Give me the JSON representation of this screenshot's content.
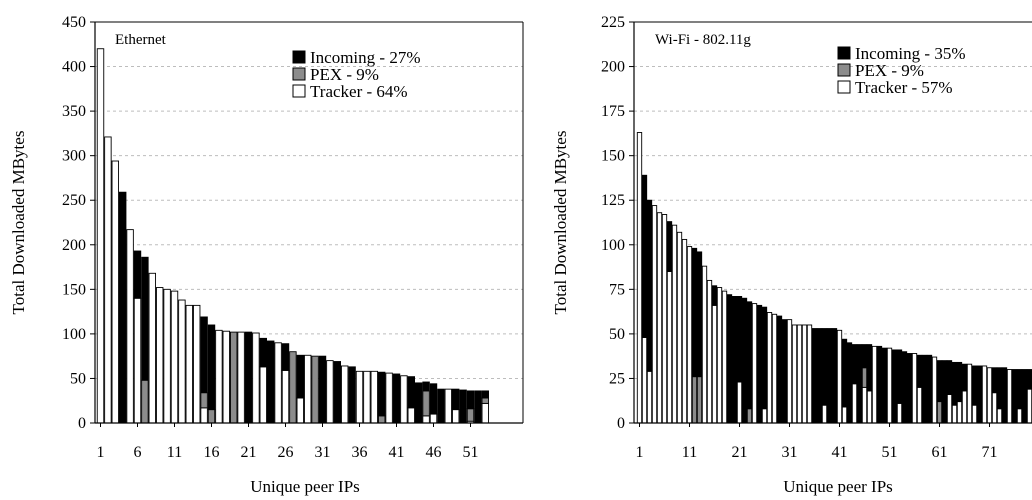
{
  "chart_data": [
    {
      "type": "bar",
      "stacked": true,
      "title": "Ethernet",
      "xlabel": "Unique peer IPs",
      "ylabel": "Total Downloaded MBytes",
      "ylim": [
        0,
        450
      ],
      "yticks": [
        0,
        50,
        100,
        150,
        200,
        250,
        300,
        350,
        400,
        450
      ],
      "xticks": [
        1,
        6,
        11,
        16,
        21,
        26,
        31,
        36,
        41,
        46,
        51
      ],
      "grid": true,
      "legend_position": "top-right",
      "colors": {
        "Incoming": "#000000",
        "PEX": "#8c8c8c",
        "Tracker": "#ffffff"
      },
      "legend": [
        "Incoming - 27%",
        "PEX - 9%",
        "Tracker - 64%"
      ],
      "bars": [
        {
          "x": 1,
          "incoming": 0,
          "pex": 0,
          "tracker": 420
        },
        {
          "x": 2,
          "incoming": 0,
          "pex": 0,
          "tracker": 321
        },
        {
          "x": 3,
          "incoming": 0,
          "pex": 0,
          "tracker": 294
        },
        {
          "x": 4,
          "incoming": 259,
          "pex": 0,
          "tracker": 0
        },
        {
          "x": 5,
          "incoming": 0,
          "pex": 0,
          "tracker": 217
        },
        {
          "x": 6,
          "incoming": 53,
          "pex": 0,
          "tracker": 140
        },
        {
          "x": 7,
          "incoming": 138,
          "pex": 48,
          "tracker": 0
        },
        {
          "x": 8,
          "incoming": 0,
          "pex": 0,
          "tracker": 168
        },
        {
          "x": 9,
          "incoming": 0,
          "pex": 0,
          "tracker": 152
        },
        {
          "x": 10,
          "incoming": 0,
          "pex": 0,
          "tracker": 150
        },
        {
          "x": 11,
          "incoming": 0,
          "pex": 0,
          "tracker": 148
        },
        {
          "x": 12,
          "incoming": 0,
          "pex": 0,
          "tracker": 138
        },
        {
          "x": 13,
          "incoming": 0,
          "pex": 0,
          "tracker": 132
        },
        {
          "x": 14,
          "incoming": 0,
          "pex": 0,
          "tracker": 132
        },
        {
          "x": 15,
          "incoming": 85,
          "pex": 17,
          "tracker": 17
        },
        {
          "x": 16,
          "incoming": 95,
          "pex": 15,
          "tracker": 0
        },
        {
          "x": 17,
          "incoming": 0,
          "pex": 0,
          "tracker": 104
        },
        {
          "x": 18,
          "incoming": 0,
          "pex": 0,
          "tracker": 103
        },
        {
          "x": 19,
          "incoming": 0,
          "pex": 102,
          "tracker": 0
        },
        {
          "x": 20,
          "incoming": 0,
          "pex": 0,
          "tracker": 102
        },
        {
          "x": 21,
          "incoming": 102,
          "pex": 0,
          "tracker": 0
        },
        {
          "x": 22,
          "incoming": 0,
          "pex": 0,
          "tracker": 101
        },
        {
          "x": 23,
          "incoming": 32,
          "pex": 0,
          "tracker": 63
        },
        {
          "x": 24,
          "incoming": 92,
          "pex": 0,
          "tracker": 0
        },
        {
          "x": 25,
          "incoming": 0,
          "pex": 0,
          "tracker": 90
        },
        {
          "x": 26,
          "incoming": 30,
          "pex": 0,
          "tracker": 59
        },
        {
          "x": 27,
          "incoming": 0,
          "pex": 80,
          "tracker": 0
        },
        {
          "x": 28,
          "incoming": 48,
          "pex": 0,
          "tracker": 28
        },
        {
          "x": 29,
          "incoming": 0,
          "pex": 0,
          "tracker": 76
        },
        {
          "x": 30,
          "incoming": 0,
          "pex": 75,
          "tracker": 0
        },
        {
          "x": 31,
          "incoming": 75,
          "pex": 0,
          "tracker": 0
        },
        {
          "x": 32,
          "incoming": 0,
          "pex": 0,
          "tracker": 70
        },
        {
          "x": 33,
          "incoming": 69,
          "pex": 0,
          "tracker": 0
        },
        {
          "x": 34,
          "incoming": 0,
          "pex": 0,
          "tracker": 64
        },
        {
          "x": 35,
          "incoming": 63,
          "pex": 0,
          "tracker": 0
        },
        {
          "x": 36,
          "incoming": 0,
          "pex": 0,
          "tracker": 58
        },
        {
          "x": 37,
          "incoming": 0,
          "pex": 0,
          "tracker": 58
        },
        {
          "x": 38,
          "incoming": 0,
          "pex": 0,
          "tracker": 58
        },
        {
          "x": 39,
          "incoming": 49,
          "pex": 8,
          "tracker": 0
        },
        {
          "x": 40,
          "incoming": 0,
          "pex": 0,
          "tracker": 56
        },
        {
          "x": 41,
          "incoming": 55,
          "pex": 0,
          "tracker": 0
        },
        {
          "x": 42,
          "incoming": 0,
          "pex": 0,
          "tracker": 53
        },
        {
          "x": 43,
          "incoming": 35,
          "pex": 0,
          "tracker": 17
        },
        {
          "x": 44,
          "incoming": 45,
          "pex": 0,
          "tracker": 0
        },
        {
          "x": 45,
          "incoming": 10,
          "pex": 28,
          "tracker": 8
        },
        {
          "x": 46,
          "incoming": 34,
          "pex": 0,
          "tracker": 10
        },
        {
          "x": 47,
          "incoming": 38,
          "pex": 0,
          "tracker": 0
        },
        {
          "x": 48,
          "incoming": 0,
          "pex": 0,
          "tracker": 38
        },
        {
          "x": 49,
          "incoming": 23,
          "pex": 0,
          "tracker": 15
        },
        {
          "x": 50,
          "incoming": 37,
          "pex": 0,
          "tracker": 0
        },
        {
          "x": 51,
          "incoming": 20,
          "pex": 14,
          "tracker": 2
        },
        {
          "x": 52,
          "incoming": 36,
          "pex": 0,
          "tracker": 0
        },
        {
          "x": 53,
          "incoming": 8,
          "pex": 6,
          "tracker": 22
        }
      ]
    },
    {
      "type": "bar",
      "stacked": true,
      "title": "Wi-Fi - 802.11g",
      "xlabel": "Unique peer IPs",
      "ylabel": "Total Downloaded MBytes",
      "ylim": [
        0,
        225
      ],
      "yticks": [
        0,
        25,
        50,
        75,
        100,
        125,
        150,
        175,
        200,
        225
      ],
      "xticks": [
        1,
        11,
        21,
        31,
        41,
        51,
        61,
        71
      ],
      "grid": true,
      "legend_position": "top-right",
      "colors": {
        "Incoming": "#000000",
        "PEX": "#8c8c8c",
        "Tracker": "#ffffff"
      },
      "legend": [
        "Incoming - 35%",
        "PEX - 9%",
        "Tracker - 57%"
      ],
      "bars": [
        {
          "x": 1,
          "incoming": 0,
          "pex": 0,
          "tracker": 163
        },
        {
          "x": 2,
          "incoming": 91,
          "pex": 0,
          "tracker": 48
        },
        {
          "x": 3,
          "incoming": 96,
          "pex": 0,
          "tracker": 29
        },
        {
          "x": 4,
          "incoming": 0,
          "pex": 0,
          "tracker": 122
        },
        {
          "x": 5,
          "incoming": 0,
          "pex": 0,
          "tracker": 118
        },
        {
          "x": 6,
          "incoming": 0,
          "pex": 0,
          "tracker": 117
        },
        {
          "x": 7,
          "incoming": 28,
          "pex": 0,
          "tracker": 85
        },
        {
          "x": 8,
          "incoming": 0,
          "pex": 0,
          "tracker": 111
        },
        {
          "x": 9,
          "incoming": 0,
          "pex": 0,
          "tracker": 107
        },
        {
          "x": 10,
          "incoming": 0,
          "pex": 0,
          "tracker": 103
        },
        {
          "x": 11,
          "incoming": 0,
          "pex": 0,
          "tracker": 99
        },
        {
          "x": 12,
          "incoming": 72,
          "pex": 26,
          "tracker": 0
        },
        {
          "x": 13,
          "incoming": 70,
          "pex": 26,
          "tracker": 0
        },
        {
          "x": 14,
          "incoming": 0,
          "pex": 0,
          "tracker": 88
        },
        {
          "x": 15,
          "incoming": 0,
          "pex": 0,
          "tracker": 80
        },
        {
          "x": 16,
          "incoming": 11,
          "pex": 0,
          "tracker": 66
        },
        {
          "x": 17,
          "incoming": 0,
          "pex": 0,
          "tracker": 76
        },
        {
          "x": 18,
          "incoming": 0,
          "pex": 0,
          "tracker": 74
        },
        {
          "x": 19,
          "incoming": 72,
          "pex": 0,
          "tracker": 0
        },
        {
          "x": 20,
          "incoming": 71,
          "pex": 0,
          "tracker": 0
        },
        {
          "x": 21,
          "incoming": 48,
          "pex": 0,
          "tracker": 23
        },
        {
          "x": 22,
          "incoming": 70,
          "pex": 0,
          "tracker": 0
        },
        {
          "x": 23,
          "incoming": 60,
          "pex": 8,
          "tracker": 0
        },
        {
          "x": 24,
          "incoming": 0,
          "pex": 0,
          "tracker": 67
        },
        {
          "x": 25,
          "incoming": 66,
          "pex": 0,
          "tracker": 0
        },
        {
          "x": 26,
          "incoming": 57,
          "pex": 0,
          "tracker": 8
        },
        {
          "x": 27,
          "incoming": 0,
          "pex": 0,
          "tracker": 62
        },
        {
          "x": 28,
          "incoming": 0,
          "pex": 0,
          "tracker": 61
        },
        {
          "x": 29,
          "incoming": 60,
          "pex": 0,
          "tracker": 0
        },
        {
          "x": 30,
          "incoming": 58,
          "pex": 0,
          "tracker": 0
        },
        {
          "x": 31,
          "incoming": 0,
          "pex": 0,
          "tracker": 58
        },
        {
          "x": 32,
          "incoming": 0,
          "pex": 0,
          "tracker": 55
        },
        {
          "x": 33,
          "incoming": 0,
          "pex": 0,
          "tracker": 55
        },
        {
          "x": 34,
          "incoming": 0,
          "pex": 0,
          "tracker": 55
        },
        {
          "x": 35,
          "incoming": 0,
          "pex": 0,
          "tracker": 55
        },
        {
          "x": 36,
          "incoming": 53,
          "pex": 0,
          "tracker": 0
        },
        {
          "x": 37,
          "incoming": 53,
          "pex": 0,
          "tracker": 0
        },
        {
          "x": 38,
          "incoming": 43,
          "pex": 0,
          "tracker": 10
        },
        {
          "x": 39,
          "incoming": 53,
          "pex": 0,
          "tracker": 0
        },
        {
          "x": 40,
          "incoming": 53,
          "pex": 0,
          "tracker": 0
        },
        {
          "x": 41,
          "incoming": 0,
          "pex": 0,
          "tracker": 52
        },
        {
          "x": 42,
          "incoming": 38,
          "pex": 0,
          "tracker": 9
        },
        {
          "x": 43,
          "incoming": 45,
          "pex": 0,
          "tracker": 0
        },
        {
          "x": 44,
          "incoming": 22,
          "pex": 0,
          "tracker": 22
        },
        {
          "x": 45,
          "incoming": 44,
          "pex": 0,
          "tracker": 0
        },
        {
          "x": 46,
          "incoming": 13,
          "pex": 11,
          "tracker": 20
        },
        {
          "x": 47,
          "incoming": 26,
          "pex": 0,
          "tracker": 18
        },
        {
          "x": 48,
          "incoming": 0,
          "pex": 0,
          "tracker": 43
        },
        {
          "x": 49,
          "incoming": 43,
          "pex": 0,
          "tracker": 0
        },
        {
          "x": 50,
          "incoming": 42,
          "pex": 0,
          "tracker": 0
        },
        {
          "x": 51,
          "incoming": 0,
          "pex": 0,
          "tracker": 42
        },
        {
          "x": 52,
          "incoming": 41,
          "pex": 0,
          "tracker": 0
        },
        {
          "x": 53,
          "incoming": 30,
          "pex": 0,
          "tracker": 11
        },
        {
          "x": 54,
          "incoming": 40,
          "pex": 0,
          "tracker": 0
        },
        {
          "x": 55,
          "incoming": 39,
          "pex": 0,
          "tracker": 0
        },
        {
          "x": 56,
          "incoming": 0,
          "pex": 0,
          "tracker": 39
        },
        {
          "x": 57,
          "incoming": 18,
          "pex": 0,
          "tracker": 20
        },
        {
          "x": 58,
          "incoming": 38,
          "pex": 0,
          "tracker": 0
        },
        {
          "x": 59,
          "incoming": 38,
          "pex": 0,
          "tracker": 0
        },
        {
          "x": 60,
          "incoming": 0,
          "pex": 0,
          "tracker": 37
        },
        {
          "x": 61,
          "incoming": 23,
          "pex": 12,
          "tracker": 0
        },
        {
          "x": 62,
          "incoming": 35,
          "pex": 0,
          "tracker": 0
        },
        {
          "x": 63,
          "incoming": 19,
          "pex": 0,
          "tracker": 16
        },
        {
          "x": 64,
          "incoming": 24,
          "pex": 0,
          "tracker": 10
        },
        {
          "x": 65,
          "incoming": 22,
          "pex": 0,
          "tracker": 12
        },
        {
          "x": 66,
          "incoming": 15,
          "pex": 0,
          "tracker": 18
        },
        {
          "x": 67,
          "incoming": 0,
          "pex": 0,
          "tracker": 33
        },
        {
          "x": 68,
          "incoming": 22,
          "pex": 0,
          "tracker": 10
        },
        {
          "x": 69,
          "incoming": 32,
          "pex": 0,
          "tracker": 0
        },
        {
          "x": 70,
          "incoming": 0,
          "pex": 0,
          "tracker": 32
        },
        {
          "x": 71,
          "incoming": 0,
          "pex": 0,
          "tracker": 31
        },
        {
          "x": 72,
          "incoming": 14,
          "pex": 0,
          "tracker": 17
        },
        {
          "x": 73,
          "incoming": 23,
          "pex": 0,
          "tracker": 8
        },
        {
          "x": 74,
          "incoming": 31,
          "pex": 0,
          "tracker": 0
        },
        {
          "x": 75,
          "incoming": 0,
          "pex": 0,
          "tracker": 30
        },
        {
          "x": 76,
          "incoming": 30,
          "pex": 0,
          "tracker": 0
        },
        {
          "x": 77,
          "incoming": 22,
          "pex": 0,
          "tracker": 8
        },
        {
          "x": 78,
          "incoming": 30,
          "pex": 0,
          "tracker": 0
        },
        {
          "x": 79,
          "incoming": 11,
          "pex": 0,
          "tracker": 19
        }
      ]
    }
  ]
}
